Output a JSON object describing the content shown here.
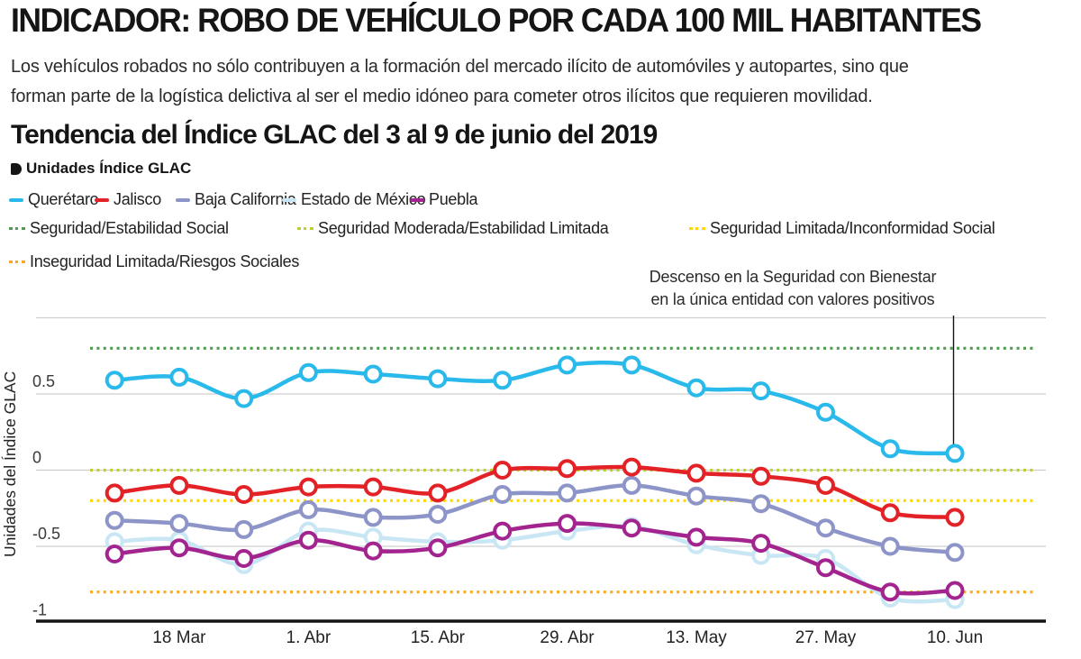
{
  "header": {
    "title": "INDICADOR: ROBO DE VEHÍCULO POR CADA 100 MIL HABITANTES",
    "subtitle_line1": "Los vehículos robados no sólo contribuyen a la formación del mercado ilícito de automóviles y autopartes, sino que",
    "subtitle_line2": "forman parte de la logística delictiva al ser el medio idóneo para cometer otros ilícitos que requieren movilidad."
  },
  "section": {
    "title": "Tendencia del Índice GLAC del 3 al 9 de junio del 2019",
    "units_label": "Unidades Índice GLAC"
  },
  "annotation": {
    "line1": "Descenso en  la Seguridad con Bienestar",
    "line2": "en la única entidad con valores positivos"
  },
  "chart_data": {
    "type": "line",
    "ylabel": "Unidades del Índice GLAC",
    "ylim": [
      -1,
      1
    ],
    "yticks": [
      0.5,
      0,
      -0.5,
      -1
    ],
    "grid": true,
    "legend_position": "top",
    "n_points": 14,
    "x_labels": [
      "18 Mar",
      "1. Abr",
      "15. Abr",
      "29. Abr",
      "13. May",
      "27. May",
      "10. Jun"
    ],
    "x_label_point_indices": [
      1,
      3,
      5,
      7,
      9,
      11,
      13
    ],
    "series": [
      {
        "name": "Querétaro",
        "color": "#29b9ea",
        "values": [
          0.59,
          0.61,
          0.47,
          0.64,
          0.63,
          0.6,
          0.59,
          0.69,
          0.69,
          0.54,
          0.52,
          0.38,
          0.14,
          0.11
        ]
      },
      {
        "name": "Jalisco",
        "color": "#e32227",
        "values": [
          -0.15,
          -0.1,
          -0.16,
          -0.11,
          -0.11,
          -0.15,
          0.0,
          0.01,
          0.02,
          -0.02,
          -0.04,
          -0.1,
          -0.28,
          -0.31
        ]
      },
      {
        "name": "Baja California",
        "color": "#8d95c8",
        "values": [
          -0.33,
          -0.35,
          -0.39,
          -0.26,
          -0.31,
          -0.29,
          -0.16,
          -0.15,
          -0.1,
          -0.17,
          -0.22,
          -0.38,
          -0.5,
          -0.54
        ]
      },
      {
        "name": "Estado de México",
        "color": "#c9e6f4",
        "values": [
          -0.47,
          -0.46,
          -0.62,
          -0.4,
          -0.44,
          -0.47,
          -0.46,
          -0.4,
          -0.37,
          -0.49,
          -0.56,
          -0.58,
          -0.84,
          -0.85
        ]
      },
      {
        "name": "Puebla",
        "color": "#a3248f",
        "values": [
          -0.55,
          -0.51,
          -0.58,
          -0.46,
          -0.53,
          -0.51,
          -0.4,
          -0.35,
          -0.38,
          -0.44,
          -0.48,
          -0.64,
          -0.8,
          -0.79
        ]
      }
    ],
    "thresholds": [
      {
        "label": "Seguridad/Estabilidad Social",
        "color": "#4e9b51",
        "value": 0.8
      },
      {
        "label": "Seguridad Moderada/Estabilidad Limitada",
        "color": "#bdd02f",
        "value": 0.0
      },
      {
        "label": "Seguridad Limitada/Inconformidad Social",
        "color": "#ffd800",
        "value": -0.2
      },
      {
        "label": "Inseguridad Limitada/Riesgos Sociales",
        "color": "#ffaa1e",
        "value": -0.8
      }
    ]
  }
}
